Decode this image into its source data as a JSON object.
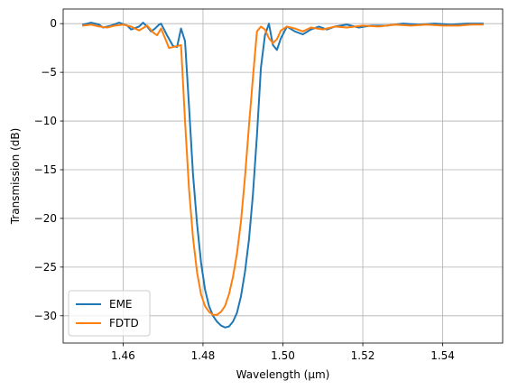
{
  "chart_data": {
    "type": "line",
    "title": "",
    "xlabel": "Wavelength (µm)",
    "ylabel": "Transmission (dB)",
    "xlim": [
      1.445,
      1.555
    ],
    "ylim": [
      -32.8,
      1.5
    ],
    "grid": true,
    "legend_position": "lower-left",
    "x_ticks": [
      1.46,
      1.48,
      1.5,
      1.52,
      1.54
    ],
    "x_tick_labels": [
      "1.46",
      "1.48",
      "1.50",
      "1.52",
      "1.54"
    ],
    "y_ticks": [
      0,
      -5,
      -10,
      -15,
      -20,
      -25,
      -30
    ],
    "y_tick_labels": [
      "0",
      "−5",
      "−10",
      "−15",
      "−20",
      "−25",
      "−30"
    ],
    "series": [
      {
        "name": "EME",
        "color": "#1f77b4",
        "points": [
          [
            1.45,
            -0.1
          ],
          [
            1.452,
            0.1
          ],
          [
            1.454,
            -0.1
          ],
          [
            1.455,
            -0.4
          ],
          [
            1.457,
            -0.2
          ],
          [
            1.459,
            0.1
          ],
          [
            1.461,
            -0.2
          ],
          [
            1.462,
            -0.6
          ],
          [
            1.464,
            -0.3
          ],
          [
            1.465,
            0.1
          ],
          [
            1.466,
            -0.3
          ],
          [
            1.467,
            -0.8
          ],
          [
            1.468,
            -0.5
          ],
          [
            1.469,
            -0.1
          ],
          [
            1.4695,
            0.0
          ],
          [
            1.471,
            -1.2
          ],
          [
            1.4725,
            -2.3
          ],
          [
            1.4735,
            -2.4
          ],
          [
            1.4745,
            -0.5
          ],
          [
            1.4755,
            -1.8
          ],
          [
            1.4765,
            -8.5
          ],
          [
            1.4775,
            -15.5
          ],
          [
            1.4785,
            -20.5
          ],
          [
            1.4795,
            -24.5
          ],
          [
            1.4805,
            -27.3
          ],
          [
            1.4815,
            -29.0
          ],
          [
            1.4825,
            -30.0
          ],
          [
            1.4835,
            -30.6
          ],
          [
            1.4845,
            -31.0
          ],
          [
            1.4855,
            -31.2
          ],
          [
            1.4865,
            -31.1
          ],
          [
            1.4875,
            -30.6
          ],
          [
            1.4885,
            -29.7
          ],
          [
            1.4895,
            -28.0
          ],
          [
            1.4905,
            -25.5
          ],
          [
            1.4915,
            -22.2
          ],
          [
            1.4925,
            -17.5
          ],
          [
            1.4935,
            -11.5
          ],
          [
            1.4945,
            -4.5
          ],
          [
            1.4955,
            -1.2
          ],
          [
            1.4965,
            0.0
          ],
          [
            1.4975,
            -2.2
          ],
          [
            1.4985,
            -2.7
          ],
          [
            1.4995,
            -1.5
          ],
          [
            1.501,
            -0.3
          ],
          [
            1.503,
            -0.8
          ],
          [
            1.505,
            -1.1
          ],
          [
            1.507,
            -0.6
          ],
          [
            1.509,
            -0.3
          ],
          [
            1.511,
            -0.6
          ],
          [
            1.513,
            -0.3
          ],
          [
            1.516,
            -0.1
          ],
          [
            1.519,
            -0.4
          ],
          [
            1.522,
            -0.2
          ],
          [
            1.526,
            -0.2
          ],
          [
            1.53,
            0.0
          ],
          [
            1.534,
            -0.1
          ],
          [
            1.538,
            0.0
          ],
          [
            1.542,
            -0.1
          ],
          [
            1.546,
            0.0
          ],
          [
            1.55,
            0.0
          ]
        ]
      },
      {
        "name": "FDTD",
        "color": "#ff7f0e",
        "points": [
          [
            1.45,
            -0.2
          ],
          [
            1.452,
            -0.1
          ],
          [
            1.454,
            -0.3
          ],
          [
            1.456,
            -0.4
          ],
          [
            1.458,
            -0.2
          ],
          [
            1.46,
            -0.1
          ],
          [
            1.462,
            -0.3
          ],
          [
            1.464,
            -0.7
          ],
          [
            1.466,
            -0.2
          ],
          [
            1.4675,
            -0.9
          ],
          [
            1.4685,
            -1.2
          ],
          [
            1.4695,
            -0.5
          ],
          [
            1.4705,
            -1.5
          ],
          [
            1.4715,
            -2.5
          ],
          [
            1.4725,
            -2.4
          ],
          [
            1.4735,
            -2.3
          ],
          [
            1.4745,
            -2.2
          ],
          [
            1.4755,
            -10.0
          ],
          [
            1.4765,
            -17.0
          ],
          [
            1.4775,
            -22.0
          ],
          [
            1.4785,
            -25.5
          ],
          [
            1.4795,
            -27.8
          ],
          [
            1.4805,
            -29.0
          ],
          [
            1.4815,
            -29.6
          ],
          [
            1.4825,
            -29.9
          ],
          [
            1.4835,
            -29.9
          ],
          [
            1.4845,
            -29.6
          ],
          [
            1.4855,
            -29.0
          ],
          [
            1.4865,
            -27.8
          ],
          [
            1.4875,
            -26.0
          ],
          [
            1.4885,
            -23.6
          ],
          [
            1.4895,
            -20.3
          ],
          [
            1.4905,
            -15.8
          ],
          [
            1.4915,
            -10.5
          ],
          [
            1.4925,
            -5.5
          ],
          [
            1.4935,
            -0.8
          ],
          [
            1.4945,
            -0.3
          ],
          [
            1.4955,
            -0.6
          ],
          [
            1.4965,
            -1.5
          ],
          [
            1.4975,
            -2.0
          ],
          [
            1.4985,
            -1.6
          ],
          [
            1.4995,
            -0.7
          ],
          [
            1.501,
            -0.3
          ],
          [
            1.503,
            -0.5
          ],
          [
            1.505,
            -0.8
          ],
          [
            1.507,
            -0.4
          ],
          [
            1.51,
            -0.6
          ],
          [
            1.513,
            -0.3
          ],
          [
            1.516,
            -0.4
          ],
          [
            1.52,
            -0.2
          ],
          [
            1.524,
            -0.3
          ],
          [
            1.528,
            -0.1
          ],
          [
            1.532,
            -0.2
          ],
          [
            1.536,
            -0.1
          ],
          [
            1.54,
            -0.2
          ],
          [
            1.544,
            -0.2
          ],
          [
            1.547,
            -0.1
          ],
          [
            1.55,
            -0.1
          ]
        ]
      }
    ]
  }
}
